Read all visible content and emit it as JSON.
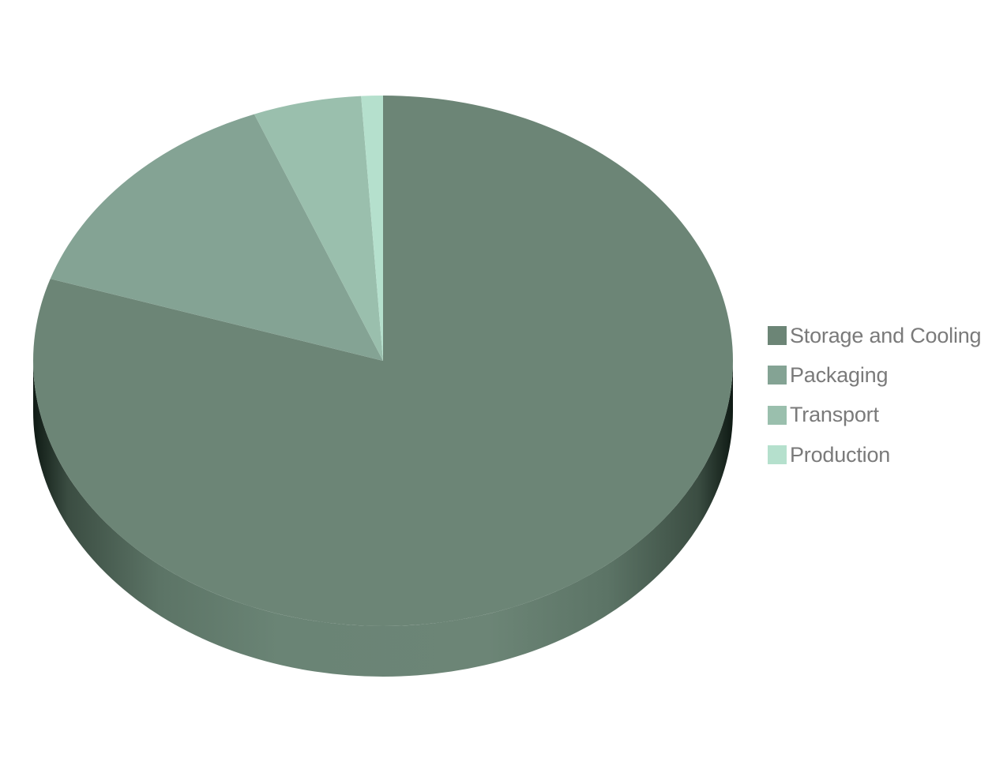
{
  "chart_data": {
    "type": "pie",
    "style": "3d",
    "title": "",
    "categories": [
      "Storage and Cooling",
      "Packaging",
      "Transport",
      "Production"
    ],
    "values": [
      80,
      14,
      5,
      1
    ],
    "unit": "%",
    "colors": [
      "#6c8576",
      "#84a394",
      "#9abfad",
      "#b5e0cd"
    ],
    "start_angle": "12 o'clock",
    "direction": "clockwise",
    "legend_position": "right",
    "data_labels": false
  }
}
